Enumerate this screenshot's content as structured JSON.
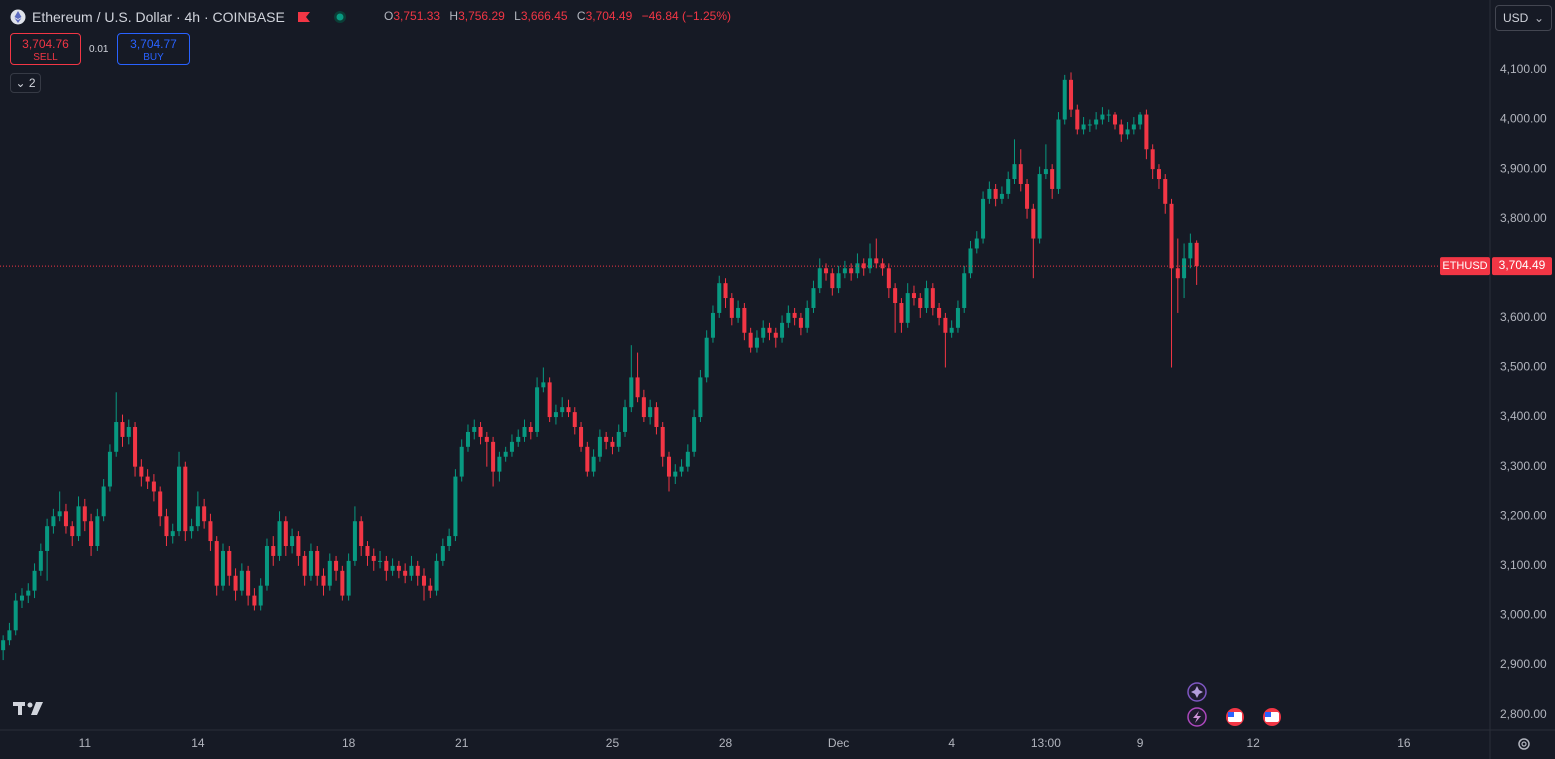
{
  "header": {
    "symbol": "Ethereum / U.S. Dollar · 4h · COINBASE",
    "ohlc": [
      {
        "label": "O",
        "value": "3,751.33"
      },
      {
        "label": "H",
        "value": "3,756.29"
      },
      {
        "label": "L",
        "value": "3,666.45"
      },
      {
        "label": "C",
        "value": "3,704.49"
      }
    ],
    "change": "−46.84 (−1.25%)"
  },
  "trade": {
    "sell_price": "3,704.76",
    "sell_label": "SELL",
    "spread": "0.01",
    "buy_price": "3,704.77",
    "buy_label": "BUY",
    "indicators": "2",
    "currency": "USD"
  },
  "chart_data": {
    "type": "candlestick",
    "up_color": "#089981",
    "down_color": "#f23645",
    "last_price": {
      "value": 3704.49,
      "label": "3,704.49",
      "symbol": "ETHUSD"
    },
    "ylim": [
      2769,
      4241
    ],
    "yticks": [
      {
        "value": 2800,
        "label": "2,800.00"
      },
      {
        "value": 2900,
        "label": "2,900.00"
      },
      {
        "value": 3000,
        "label": "3,000.00"
      },
      {
        "value": 3100,
        "label": "3,100.00"
      },
      {
        "value": 3200,
        "label": "3,200.00"
      },
      {
        "value": 3300,
        "label": "3,300.00"
      },
      {
        "value": 3400,
        "label": "3,400.00"
      },
      {
        "value": 3500,
        "label": "3,500.00"
      },
      {
        "value": 3600,
        "label": "3,600.00"
      },
      {
        "value": 3700,
        "label": "3,700.00"
      },
      {
        "value": 3800,
        "label": "3,800.00"
      },
      {
        "value": 3900,
        "label": "3,900.00"
      },
      {
        "value": 4000,
        "label": "4,000.00"
      },
      {
        "value": 4100,
        "label": "4,100.00"
      }
    ],
    "xlim": [
      -0.5,
      236.7
    ],
    "xticks": [
      {
        "value": 13,
        "label": "11"
      },
      {
        "value": 31,
        "label": "14"
      },
      {
        "value": 55,
        "label": "18"
      },
      {
        "value": 73,
        "label": "21"
      },
      {
        "value": 97,
        "label": "25"
      },
      {
        "value": 115,
        "label": "28"
      },
      {
        "value": 133,
        "label": "Dec"
      },
      {
        "value": 151,
        "label": "4"
      },
      {
        "value": 166,
        "label": "13:00"
      },
      {
        "value": 181,
        "label": "9"
      },
      {
        "value": 199,
        "label": "12"
      },
      {
        "value": 223,
        "label": "16"
      }
    ],
    "ohlc": [
      [
        2930,
        2960,
        2910,
        2950
      ],
      [
        2950,
        2985,
        2940,
        2970
      ],
      [
        2970,
        3045,
        2960,
        3030
      ],
      [
        3030,
        3055,
        3015,
        3040
      ],
      [
        3040,
        3065,
        3025,
        3050
      ],
      [
        3050,
        3105,
        3035,
        3090
      ],
      [
        3090,
        3145,
        3080,
        3130
      ],
      [
        3130,
        3195,
        3070,
        3180
      ],
      [
        3180,
        3215,
        3165,
        3200
      ],
      [
        3200,
        3250,
        3190,
        3210
      ],
      [
        3210,
        3225,
        3165,
        3180
      ],
      [
        3180,
        3190,
        3140,
        3160
      ],
      [
        3160,
        3240,
        3150,
        3220
      ],
      [
        3220,
        3235,
        3170,
        3190
      ],
      [
        3190,
        3205,
        3120,
        3140
      ],
      [
        3140,
        3215,
        3130,
        3200
      ],
      [
        3200,
        3275,
        3190,
        3260
      ],
      [
        3260,
        3345,
        3250,
        3330
      ],
      [
        3330,
        3450,
        3320,
        3390
      ],
      [
        3390,
        3405,
        3340,
        3360
      ],
      [
        3360,
        3395,
        3345,
        3380
      ],
      [
        3380,
        3390,
        3280,
        3300
      ],
      [
        3300,
        3315,
        3260,
        3280
      ],
      [
        3280,
        3295,
        3255,
        3270
      ],
      [
        3270,
        3285,
        3230,
        3250
      ],
      [
        3250,
        3260,
        3180,
        3200
      ],
      [
        3200,
        3215,
        3140,
        3160
      ],
      [
        3160,
        3185,
        3145,
        3170
      ],
      [
        3170,
        3330,
        3160,
        3300
      ],
      [
        3300,
        3310,
        3150,
        3170
      ],
      [
        3170,
        3195,
        3155,
        3180
      ],
      [
        3180,
        3250,
        3170,
        3220
      ],
      [
        3220,
        3235,
        3175,
        3190
      ],
      [
        3190,
        3205,
        3130,
        3150
      ],
      [
        3150,
        3160,
        3040,
        3060
      ],
      [
        3060,
        3145,
        3050,
        3130
      ],
      [
        3130,
        3140,
        3060,
        3080
      ],
      [
        3080,
        3095,
        3030,
        3050
      ],
      [
        3050,
        3105,
        3040,
        3090
      ],
      [
        3090,
        3100,
        3020,
        3040
      ],
      [
        3040,
        3055,
        3010,
        3020
      ],
      [
        3020,
        3075,
        3010,
        3060
      ],
      [
        3060,
        3155,
        3050,
        3140
      ],
      [
        3140,
        3160,
        3100,
        3120
      ],
      [
        3120,
        3210,
        3110,
        3190
      ],
      [
        3190,
        3200,
        3120,
        3140
      ],
      [
        3140,
        3175,
        3125,
        3160
      ],
      [
        3160,
        3170,
        3100,
        3120
      ],
      [
        3120,
        3130,
        3060,
        3080
      ],
      [
        3080,
        3145,
        3070,
        3130
      ],
      [
        3130,
        3140,
        3060,
        3080
      ],
      [
        3080,
        3095,
        3040,
        3060
      ],
      [
        3060,
        3125,
        3050,
        3110
      ],
      [
        3110,
        3120,
        3070,
        3090
      ],
      [
        3090,
        3100,
        3030,
        3040
      ],
      [
        3040,
        3125,
        3030,
        3110
      ],
      [
        3110,
        3220,
        3100,
        3190
      ],
      [
        3190,
        3200,
        3120,
        3140
      ],
      [
        3140,
        3150,
        3100,
        3120
      ],
      [
        3120,
        3135,
        3090,
        3110
      ],
      [
        3110,
        3130,
        3095,
        3110
      ],
      [
        3110,
        3120,
        3070,
        3090
      ],
      [
        3090,
        3115,
        3080,
        3100
      ],
      [
        3100,
        3110,
        3075,
        3090
      ],
      [
        3090,
        3105,
        3065,
        3080
      ],
      [
        3080,
        3120,
        3070,
        3100
      ],
      [
        3100,
        3110,
        3060,
        3080
      ],
      [
        3080,
        3095,
        3030,
        3060
      ],
      [
        3060,
        3075,
        3035,
        3050
      ],
      [
        3050,
        3125,
        3040,
        3110
      ],
      [
        3110,
        3155,
        3100,
        3140
      ],
      [
        3140,
        3175,
        3130,
        3160
      ],
      [
        3160,
        3295,
        3150,
        3280
      ],
      [
        3280,
        3355,
        3270,
        3340
      ],
      [
        3340,
        3385,
        3330,
        3370
      ],
      [
        3370,
        3395,
        3355,
        3380
      ],
      [
        3380,
        3390,
        3345,
        3360
      ],
      [
        3360,
        3370,
        3300,
        3350
      ],
      [
        3350,
        3360,
        3260,
        3290
      ],
      [
        3290,
        3330,
        3270,
        3320
      ],
      [
        3320,
        3340,
        3310,
        3330
      ],
      [
        3330,
        3365,
        3320,
        3350
      ],
      [
        3350,
        3375,
        3340,
        3360
      ],
      [
        3360,
        3395,
        3350,
        3380
      ],
      [
        3380,
        3390,
        3355,
        3370
      ],
      [
        3370,
        3480,
        3360,
        3460
      ],
      [
        3460,
        3500,
        3450,
        3470
      ],
      [
        3470,
        3480,
        3390,
        3400
      ],
      [
        3400,
        3425,
        3385,
        3410
      ],
      [
        3410,
        3440,
        3400,
        3420
      ],
      [
        3420,
        3435,
        3400,
        3410
      ],
      [
        3410,
        3420,
        3365,
        3380
      ],
      [
        3380,
        3390,
        3330,
        3340
      ],
      [
        3340,
        3350,
        3280,
        3290
      ],
      [
        3290,
        3335,
        3280,
        3320
      ],
      [
        3320,
        3375,
        3310,
        3360
      ],
      [
        3360,
        3370,
        3335,
        3350
      ],
      [
        3350,
        3360,
        3325,
        3340
      ],
      [
        3340,
        3385,
        3330,
        3370
      ],
      [
        3370,
        3435,
        3360,
        3420
      ],
      [
        3420,
        3545,
        3410,
        3480
      ],
      [
        3480,
        3530,
        3430,
        3440
      ],
      [
        3440,
        3455,
        3390,
        3400
      ],
      [
        3400,
        3435,
        3385,
        3420
      ],
      [
        3420,
        3430,
        3365,
        3380
      ],
      [
        3380,
        3390,
        3300,
        3320
      ],
      [
        3320,
        3330,
        3250,
        3280
      ],
      [
        3280,
        3305,
        3265,
        3290
      ],
      [
        3290,
        3315,
        3280,
        3300
      ],
      [
        3300,
        3345,
        3290,
        3330
      ],
      [
        3330,
        3415,
        3320,
        3400
      ],
      [
        3400,
        3495,
        3390,
        3480
      ],
      [
        3480,
        3575,
        3470,
        3560
      ],
      [
        3560,
        3625,
        3550,
        3610
      ],
      [
        3610,
        3685,
        3600,
        3670
      ],
      [
        3670,
        3680,
        3620,
        3640
      ],
      [
        3640,
        3650,
        3585,
        3600
      ],
      [
        3600,
        3635,
        3590,
        3620
      ],
      [
        3620,
        3630,
        3555,
        3570
      ],
      [
        3570,
        3580,
        3530,
        3540
      ],
      [
        3540,
        3575,
        3530,
        3560
      ],
      [
        3560,
        3595,
        3550,
        3580
      ],
      [
        3580,
        3590,
        3555,
        3570
      ],
      [
        3570,
        3580,
        3540,
        3560
      ],
      [
        3560,
        3605,
        3550,
        3590
      ],
      [
        3590,
        3625,
        3580,
        3610
      ],
      [
        3610,
        3620,
        3585,
        3600
      ],
      [
        3600,
        3610,
        3565,
        3580
      ],
      [
        3580,
        3635,
        3570,
        3620
      ],
      [
        3620,
        3675,
        3610,
        3660
      ],
      [
        3660,
        3720,
        3650,
        3700
      ],
      [
        3700,
        3710,
        3675,
        3690
      ],
      [
        3690,
        3700,
        3645,
        3660
      ],
      [
        3660,
        3705,
        3650,
        3690
      ],
      [
        3690,
        3715,
        3680,
        3700
      ],
      [
        3700,
        3710,
        3675,
        3690
      ],
      [
        3690,
        3730,
        3680,
        3710
      ],
      [
        3710,
        3720,
        3685,
        3700
      ],
      [
        3700,
        3750,
        3690,
        3720
      ],
      [
        3720,
        3760,
        3700,
        3710
      ],
      [
        3710,
        3720,
        3685,
        3700
      ],
      [
        3700,
        3710,
        3640,
        3660
      ],
      [
        3660,
        3670,
        3570,
        3630
      ],
      [
        3630,
        3640,
        3570,
        3590
      ],
      [
        3590,
        3670,
        3580,
        3650
      ],
      [
        3650,
        3665,
        3625,
        3640
      ],
      [
        3640,
        3650,
        3600,
        3620
      ],
      [
        3620,
        3675,
        3610,
        3660
      ],
      [
        3660,
        3670,
        3605,
        3620
      ],
      [
        3620,
        3630,
        3585,
        3600
      ],
      [
        3600,
        3610,
        3500,
        3570
      ],
      [
        3570,
        3595,
        3560,
        3580
      ],
      [
        3580,
        3635,
        3570,
        3620
      ],
      [
        3620,
        3705,
        3610,
        3690
      ],
      [
        3690,
        3755,
        3680,
        3740
      ],
      [
        3740,
        3775,
        3730,
        3760
      ],
      [
        3760,
        3855,
        3750,
        3840
      ],
      [
        3840,
        3875,
        3830,
        3860
      ],
      [
        3860,
        3870,
        3825,
        3840
      ],
      [
        3840,
        3865,
        3830,
        3850
      ],
      [
        3850,
        3895,
        3840,
        3880
      ],
      [
        3880,
        3960,
        3870,
        3910
      ],
      [
        3910,
        3940,
        3855,
        3870
      ],
      [
        3870,
        3880,
        3800,
        3820
      ],
      [
        3820,
        3830,
        3680,
        3760
      ],
      [
        3760,
        3905,
        3750,
        3890
      ],
      [
        3890,
        3950,
        3880,
        3900
      ],
      [
        3900,
        3910,
        3840,
        3860
      ],
      [
        3860,
        4015,
        3850,
        4000
      ],
      [
        4000,
        4090,
        3990,
        4080
      ],
      [
        4080,
        4095,
        4005,
        4020
      ],
      [
        4020,
        4030,
        3970,
        3980
      ],
      [
        3980,
        4005,
        3970,
        3990
      ],
      [
        3990,
        4000,
        3975,
        3990
      ],
      [
        3990,
        4015,
        3980,
        4000
      ],
      [
        4000,
        4025,
        3990,
        4010
      ],
      [
        4010,
        4020,
        3995,
        4010
      ],
      [
        4010,
        4015,
        3980,
        3990
      ],
      [
        3990,
        4000,
        3955,
        3970
      ],
      [
        3970,
        3995,
        3960,
        3980
      ],
      [
        3980,
        4005,
        3970,
        3990
      ],
      [
        3990,
        4015,
        3980,
        4010
      ],
      [
        4010,
        4020,
        3920,
        3940
      ],
      [
        3940,
        3950,
        3880,
        3900
      ],
      [
        3900,
        3910,
        3860,
        3880
      ],
      [
        3880,
        3890,
        3810,
        3830
      ],
      [
        3830,
        3840,
        3500,
        3700
      ],
      [
        3700,
        3760,
        3610,
        3680
      ],
      [
        3680,
        3750,
        3640,
        3720
      ],
      [
        3720,
        3770,
        3700,
        3751.33
      ],
      [
        3751.33,
        3756.29,
        3666.45,
        3704.49
      ]
    ]
  }
}
